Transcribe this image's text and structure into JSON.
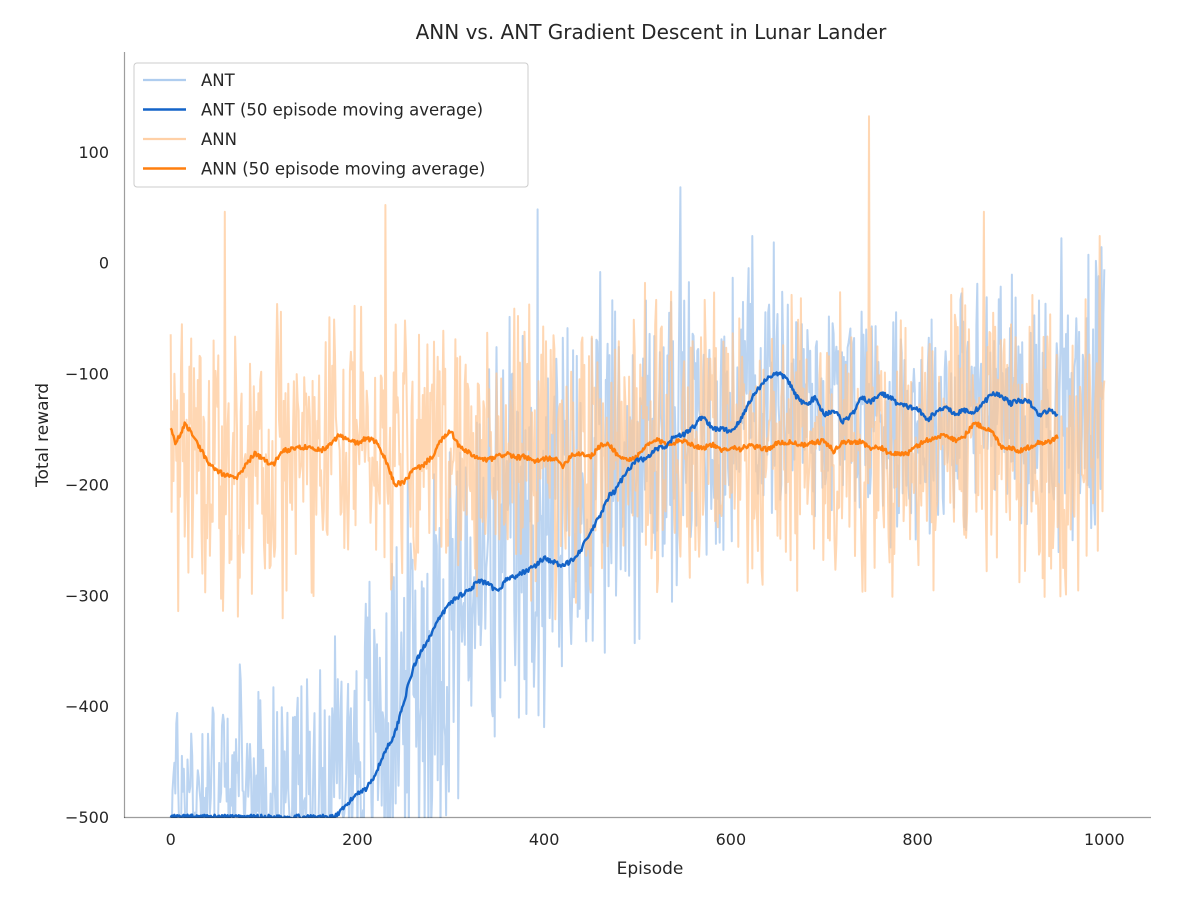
{
  "chart_data": {
    "type": "line",
    "title": "ANN vs. ANT Gradient Descent in Lunar Lander",
    "xlabel": "Episode",
    "ylabel": "Total reward",
    "xlim": [
      -50,
      1050
    ],
    "ylim": [
      -500,
      190
    ],
    "xticks": [
      0,
      200,
      400,
      600,
      800,
      1000
    ],
    "yticks": [
      -500,
      -400,
      -300,
      -200,
      -100,
      0,
      100
    ],
    "xtick_labels": [
      "0",
      "200",
      "400",
      "600",
      "800",
      "1000"
    ],
    "ytick_labels": [
      "−500",
      "−400",
      "−300",
      "−200",
      "−100",
      "0",
      "100"
    ],
    "grid": false,
    "legend_position": "upper-left",
    "series": [
      {
        "name": "ANT",
        "color": "#a1c4ec",
        "kind": "raw",
        "episodes": [
          0,
          1000
        ],
        "trend_x": [
          0,
          50,
          100,
          150,
          200,
          250,
          300,
          350,
          400,
          450,
          500,
          550,
          600,
          650,
          700,
          750,
          800,
          850,
          900,
          950,
          1000
        ],
        "trend_y": [
          -480,
          -470,
          -475,
          -470,
          -440,
          -390,
          -320,
          -270,
          -250,
          -220,
          -170,
          -150,
          -140,
          -110,
          -130,
          -130,
          -140,
          -130,
          -125,
          -130,
          -120
        ],
        "spread": [
          90,
          80,
          80,
          85,
          120,
          150,
          160,
          170,
          170,
          150,
          140,
          120,
          110,
          100,
          95,
          95,
          95,
          95,
          95,
          100,
          100
        ],
        "extremes": [
          [
            546,
            68
          ],
          [
            954,
            22
          ],
          [
            997,
            14
          ],
          [
            623,
            24
          ],
          [
            393,
            48
          ]
        ]
      },
      {
        "name": "ANT (50 episode moving average)",
        "color": "#1464c8",
        "kind": "moving_average",
        "x": [
          0,
          175,
          180,
          190,
          200,
          210,
          220,
          230,
          240,
          250,
          260,
          270,
          280,
          290,
          300,
          310,
          320,
          330,
          340,
          350,
          360,
          370,
          380,
          390,
          400,
          410,
          420,
          430,
          440,
          450,
          460,
          470,
          475,
          480,
          490,
          500,
          510,
          520,
          530,
          540,
          550,
          560,
          570,
          580,
          590,
          600,
          610,
          620,
          630,
          640,
          650,
          660,
          670,
          680,
          690,
          700,
          710,
          720,
          730,
          740,
          750,
          760,
          770,
          780,
          790,
          800,
          810,
          820,
          830,
          840,
          850,
          860,
          870,
          880,
          890,
          900,
          910,
          920,
          930,
          940,
          950
        ],
        "y": [
          -500,
          -500,
          -497,
          -488,
          -478,
          -474,
          -460,
          -440,
          -425,
          -395,
          -365,
          -348,
          -333,
          -318,
          -306,
          -300,
          -295,
          -287,
          -290,
          -297,
          -285,
          -283,
          -278,
          -274,
          -266,
          -270,
          -274,
          -268,
          -258,
          -243,
          -228,
          -210,
          -207,
          -200,
          -186,
          -178,
          -177,
          -168,
          -167,
          -156,
          -155,
          -148,
          -138,
          -150,
          -150,
          -152,
          -143,
          -125,
          -113,
          -103,
          -100,
          -104,
          -121,
          -128,
          -122,
          -137,
          -133,
          -143,
          -137,
          -122,
          -126,
          -118,
          -121,
          -128,
          -130,
          -132,
          -142,
          -135,
          -129,
          -137,
          -133,
          -135,
          -127,
          -118,
          -120,
          -127,
          -124,
          -126,
          -138,
          -133,
          -137
        ]
      },
      {
        "name": "ANN",
        "color": "#ffc896",
        "kind": "raw",
        "episodes": [
          0,
          1000
        ],
        "trend_x": [
          0,
          50,
          100,
          150,
          200,
          250,
          300,
          350,
          400,
          450,
          500,
          550,
          600,
          650,
          700,
          750,
          800,
          850,
          900,
          950,
          1000
        ],
        "trend_y": [
          -160,
          -185,
          -175,
          -165,
          -160,
          -190,
          -160,
          -175,
          -172,
          -175,
          -165,
          -160,
          -165,
          -165,
          -160,
          -170,
          -158,
          -150,
          -160,
          -160,
          -150
        ],
        "spread": [
          110,
          110,
          110,
          110,
          110,
          110,
          110,
          110,
          110,
          110,
          110,
          110,
          110,
          110,
          110,
          110,
          110,
          110,
          110,
          110,
          110
        ],
        "extremes": [
          [
            748,
            132
          ],
          [
            230,
            52
          ],
          [
            58,
            46
          ],
          [
            871,
            46
          ],
          [
            995,
            24
          ]
        ]
      },
      {
        "name": "ANN (50 episode moving average)",
        "color": "#ff7f0e",
        "kind": "moving_average",
        "x": [
          0,
          5,
          10,
          15,
          20,
          30,
          40,
          50,
          60,
          70,
          80,
          90,
          100,
          110,
          120,
          130,
          140,
          150,
          160,
          170,
          180,
          190,
          200,
          210,
          220,
          230,
          240,
          250,
          260,
          270,
          280,
          290,
          300,
          310,
          320,
          330,
          340,
          350,
          360,
          370,
          380,
          390,
          400,
          410,
          420,
          430,
          440,
          450,
          460,
          470,
          480,
          490,
          500,
          510,
          520,
          530,
          540,
          550,
          560,
          570,
          580,
          590,
          600,
          610,
          620,
          630,
          640,
          650,
          660,
          670,
          680,
          690,
          700,
          710,
          720,
          730,
          740,
          750,
          760,
          770,
          780,
          790,
          800,
          810,
          820,
          830,
          840,
          850,
          860,
          870,
          880,
          890,
          900,
          910,
          920,
          930,
          940,
          950
        ],
        "y": [
          -148,
          -163,
          -155,
          -146,
          -150,
          -165,
          -180,
          -188,
          -192,
          -195,
          -183,
          -172,
          -178,
          -182,
          -170,
          -168,
          -167,
          -165,
          -170,
          -164,
          -156,
          -160,
          -163,
          -158,
          -162,
          -178,
          -200,
          -198,
          -187,
          -183,
          -175,
          -160,
          -152,
          -167,
          -172,
          -177,
          -178,
          -175,
          -172,
          -176,
          -175,
          -180,
          -177,
          -176,
          -183,
          -173,
          -172,
          -175,
          -165,
          -164,
          -175,
          -178,
          -175,
          -165,
          -160,
          -163,
          -162,
          -160,
          -165,
          -167,
          -164,
          -170,
          -166,
          -168,
          -165,
          -167,
          -168,
          -163,
          -162,
          -163,
          -165,
          -162,
          -161,
          -170,
          -162,
          -162,
          -161,
          -168,
          -166,
          -173,
          -172,
          -172,
          -165,
          -160,
          -158,
          -155,
          -160,
          -157,
          -145,
          -148,
          -153,
          -166,
          -167,
          -170,
          -166,
          -162,
          -162,
          -157
        ]
      }
    ]
  }
}
